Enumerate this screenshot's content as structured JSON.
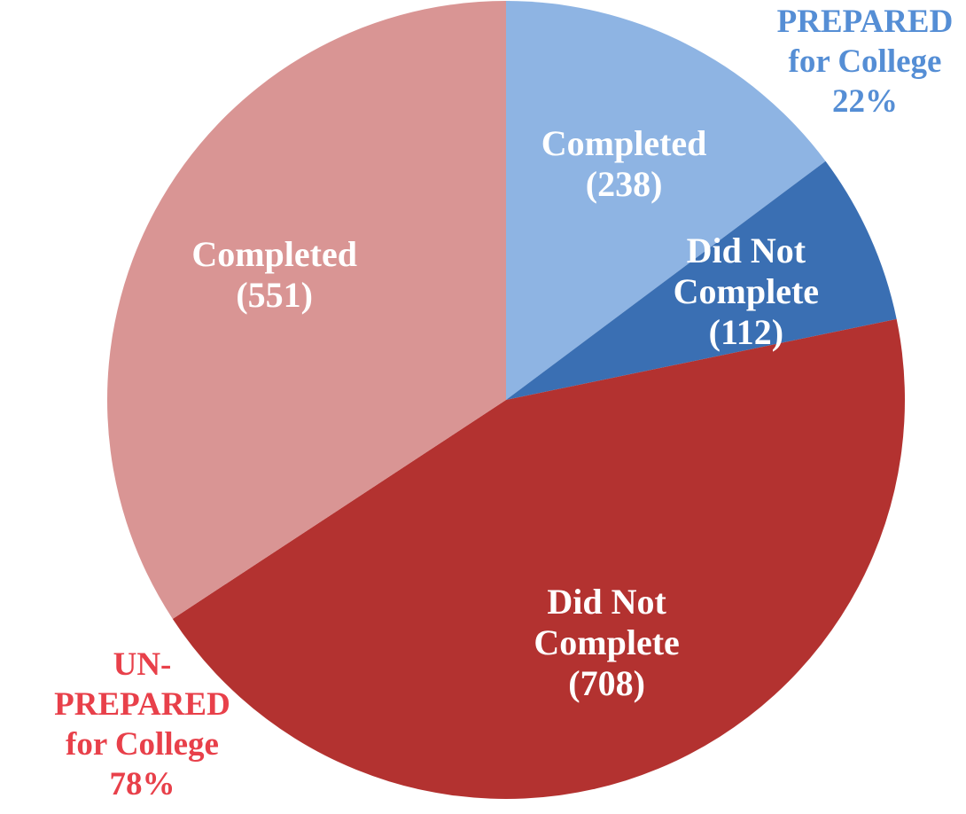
{
  "chart_data": {
    "type": "pie",
    "categories": [
      "Completed",
      "Did Not Complete",
      "Did Not Complete",
      "Completed"
    ],
    "values": [
      238,
      112,
      708,
      551
    ],
    "value_labels": [
      "(238)",
      "(112)",
      "(708)",
      "(551)"
    ],
    "colors": [
      "#8eb4e3",
      "#3a6fb3",
      "#b33230",
      "#d99594"
    ],
    "groups": [
      {
        "name": "PREPARED for College",
        "value": 22,
        "value_label": "22%",
        "color": "#558ed5"
      },
      {
        "name": "UN-PREPARED for College",
        "value": 78,
        "value_label": "78%",
        "color": "#e8404a"
      }
    ]
  }
}
